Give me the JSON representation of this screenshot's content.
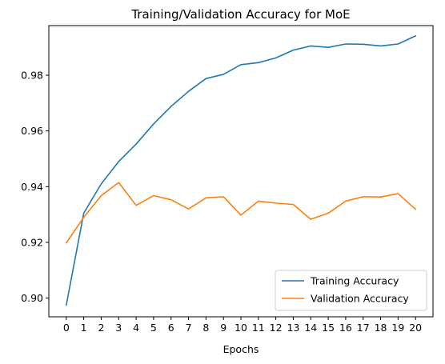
{
  "chart_data": {
    "type": "line",
    "title": "Training/Validation Accuracy for MoE",
    "xlabel": "Epochs",
    "ylabel": "",
    "x": [
      0,
      1,
      2,
      3,
      4,
      5,
      6,
      7,
      8,
      9,
      10,
      11,
      12,
      13,
      14,
      15,
      16,
      17,
      18,
      19,
      20
    ],
    "xticks": [
      "0",
      "1",
      "2",
      "3",
      "4",
      "5",
      "6",
      "7",
      "8",
      "9",
      "10",
      "11",
      "12",
      "13",
      "14",
      "15",
      "16",
      "17",
      "18",
      "19",
      "20"
    ],
    "yticks": [
      0.9,
      0.92,
      0.94,
      0.96,
      0.98
    ],
    "ytick_labels": [
      "0.90",
      "0.92",
      "0.94",
      "0.96",
      "0.98"
    ],
    "xlim": [
      -1,
      21
    ],
    "ylim": [
      0.8933,
      0.9978
    ],
    "grid": false,
    "legend_position": "lower-right",
    "series": [
      {
        "name": "Training Accuracy",
        "color": "#1f77b4",
        "values": [
          0.8975,
          0.9305,
          0.941,
          0.949,
          0.9553,
          0.9625,
          0.9688,
          0.9742,
          0.9788,
          0.9803,
          0.9838,
          0.9845,
          0.9862,
          0.989,
          0.9905,
          0.99,
          0.9912,
          0.9911,
          0.9905,
          0.9912,
          0.9941
        ]
      },
      {
        "name": "Validation Accuracy",
        "color": "#ff7f0e",
        "values": [
          0.9198,
          0.929,
          0.9368,
          0.9415,
          0.9333,
          0.9368,
          0.9353,
          0.932,
          0.936,
          0.9364,
          0.9298,
          0.9348,
          0.9341,
          0.9336,
          0.9283,
          0.9305,
          0.9348,
          0.9364,
          0.9363,
          0.9375,
          0.9319
        ]
      }
    ]
  }
}
